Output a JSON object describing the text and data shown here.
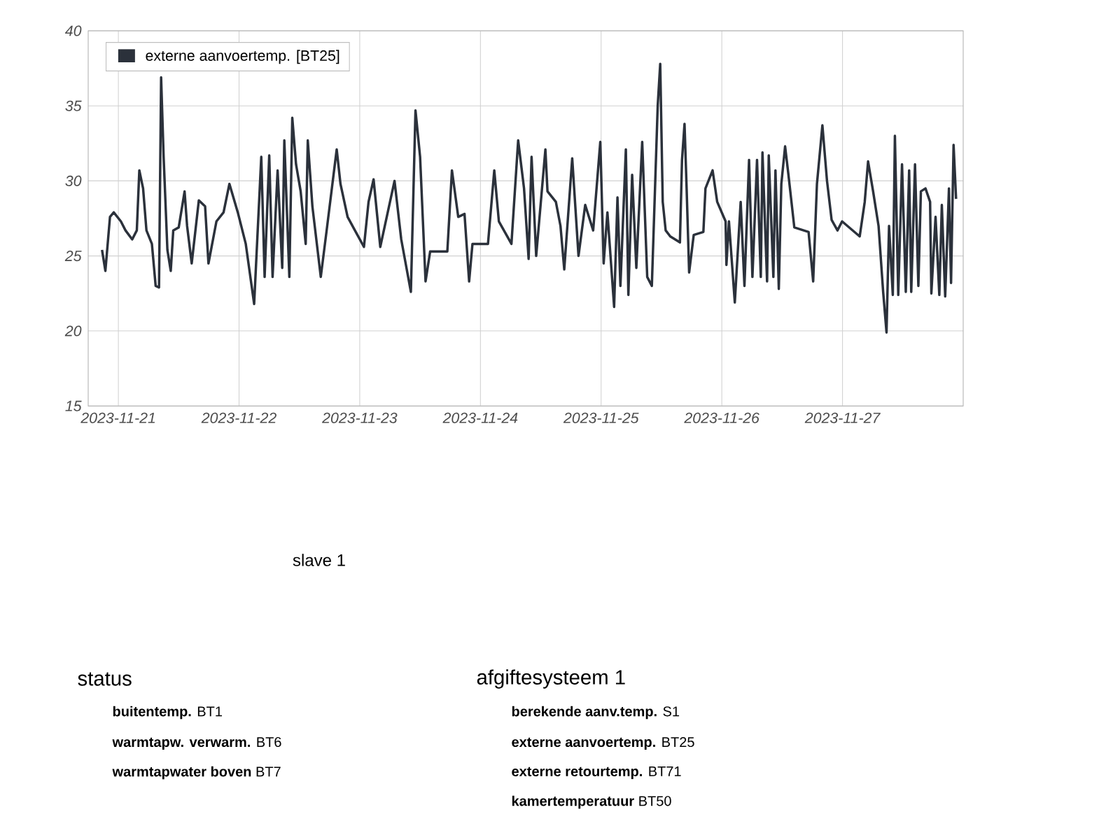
{
  "chart_data": {
    "type": "line",
    "x": [
      "2023-11-20T20:45",
      "2023-11-20T21:25",
      "2023-11-20T22:20",
      "2023-11-20T23:05",
      "2023-11-21T00:30",
      "2023-11-21T01:25",
      "2023-11-21T02:45",
      "2023-11-21T03:40",
      "2023-11-21T04:10",
      "2023-11-21T04:55",
      "2023-11-21T05:35",
      "2023-11-21T06:40",
      "2023-11-21T07:25",
      "2023-11-21T08:05",
      "2023-11-21T08:30",
      "2023-11-21T09:00",
      "2023-11-21T09:45",
      "2023-11-21T10:25",
      "2023-11-21T10:55",
      "2023-11-21T12:00",
      "2023-11-21T13:10",
      "2023-11-21T13:40",
      "2023-11-21T14:35",
      "2023-11-21T16:00",
      "2023-11-21T17:15",
      "2023-11-21T17:55",
      "2023-11-21T19:30",
      "2023-11-21T20:55",
      "2023-11-21T22:05",
      "2023-11-21T23:45",
      "2023-11-22T01:20",
      "2023-11-22T03:00",
      "2023-11-22T04:25",
      "2023-11-22T05:05",
      "2023-11-22T06:00",
      "2023-11-22T06:40",
      "2023-11-22T07:40",
      "2023-11-22T08:35",
      "2023-11-22T09:00",
      "2023-11-22T10:00",
      "2023-11-22T10:35",
      "2023-11-22T11:20",
      "2023-11-22T12:15",
      "2023-11-22T13:15",
      "2023-11-22T13:40",
      "2023-11-22T14:35",
      "2023-11-22T16:15",
      "2023-11-22T17:25",
      "2023-11-22T19:25",
      "2023-11-22T20:10",
      "2023-11-22T21:35",
      "2023-11-23T00:50",
      "2023-11-23T01:45",
      "2023-11-23T02:45",
      "2023-11-23T04:05",
      "2023-11-23T06:55",
      "2023-11-23T08:15",
      "2023-11-23T10:10",
      "2023-11-23T11:05",
      "2023-11-23T12:00",
      "2023-11-23T13:05",
      "2023-11-23T14:00",
      "2023-11-23T17:25",
      "2023-11-23T18:20",
      "2023-11-23T19:35",
      "2023-11-23T20:50",
      "2023-11-23T21:45",
      "2023-11-23T22:25",
      "2023-11-24T01:30",
      "2023-11-24T02:45",
      "2023-11-24T03:40",
      "2023-11-24T06:10",
      "2023-11-24T07:30",
      "2023-11-24T08:40",
      "2023-11-24T09:35",
      "2023-11-24T10:10",
      "2023-11-24T11:05",
      "2023-11-24T12:55",
      "2023-11-24T13:20",
      "2023-11-24T15:00",
      "2023-11-24T15:55",
      "2023-11-24T16:40",
      "2023-11-24T18:15",
      "2023-11-24T19:30",
      "2023-11-24T20:50",
      "2023-11-24T22:25",
      "2023-11-24T23:50",
      "2023-11-25T00:30",
      "2023-11-25T01:15",
      "2023-11-25T02:35",
      "2023-11-25T03:15",
      "2023-11-25T03:50",
      "2023-11-25T04:55",
      "2023-11-25T05:25",
      "2023-11-25T06:10",
      "2023-11-25T07:00",
      "2023-11-25T08:10",
      "2023-11-25T09:10",
      "2023-11-25T10:05",
      "2023-11-25T11:15",
      "2023-11-25T11:45",
      "2023-11-25T12:15",
      "2023-11-25T12:50",
      "2023-11-25T13:45",
      "2023-11-25T15:40",
      "2023-11-25T16:05",
      "2023-11-25T16:35",
      "2023-11-25T17:00",
      "2023-11-25T17:30",
      "2023-11-25T18:25",
      "2023-11-25T20:20",
      "2023-11-25T20:45",
      "2023-11-25T22:10",
      "2023-11-25T23:05",
      "2023-11-26T00:45",
      "2023-11-26T00:55",
      "2023-11-26T01:25",
      "2023-11-26T02:35",
      "2023-11-26T03:45",
      "2023-11-26T04:30",
      "2023-11-26T05:25",
      "2023-11-26T06:05",
      "2023-11-26T07:00",
      "2023-11-26T07:45",
      "2023-11-26T08:05",
      "2023-11-26T09:00",
      "2023-11-26T09:20",
      "2023-11-26T10:15",
      "2023-11-26T10:40",
      "2023-11-26T11:20",
      "2023-11-26T11:50",
      "2023-11-26T12:35",
      "2023-11-26T13:15",
      "2023-11-26T14:25",
      "2023-11-26T17:15",
      "2023-11-26T18:10",
      "2023-11-26T18:55",
      "2023-11-26T20:00",
      "2023-11-26T20:55",
      "2023-11-26T21:50",
      "2023-11-26T23:00",
      "2023-11-26T23:55",
      "2023-11-27T03:25",
      "2023-11-27T04:25",
      "2023-11-27T05:05",
      "2023-11-27T06:05",
      "2023-11-27T07:10",
      "2023-11-27T08:05",
      "2023-11-27T08:45",
      "2023-11-27T09:15",
      "2023-11-27T10:00",
      "2023-11-27T10:25",
      "2023-11-27T11:05",
      "2023-11-27T11:50",
      "2023-11-27T12:35",
      "2023-11-27T13:15",
      "2023-11-27T13:40",
      "2023-11-27T14:25",
      "2023-11-27T15:05",
      "2023-11-27T15:35",
      "2023-11-27T16:30",
      "2023-11-27T17:25",
      "2023-11-27T17:40",
      "2023-11-27T18:30",
      "2023-11-27T19:15",
      "2023-11-27T19:45",
      "2023-11-27T20:25",
      "2023-11-27T21:10",
      "2023-11-27T21:35",
      "2023-11-27T22:05",
      "2023-11-27T22:35"
    ],
    "series": [
      {
        "name": "externe aanvoertemp. [BT25]",
        "color": "#2b313b",
        "values": [
          25.4,
          24.0,
          27.6,
          27.9,
          27.3,
          26.7,
          26.1,
          26.7,
          30.7,
          29.5,
          26.7,
          25.8,
          23.0,
          22.9,
          36.9,
          31.6,
          25.4,
          24.0,
          26.7,
          26.9,
          29.3,
          27.0,
          24.5,
          28.7,
          28.3,
          24.5,
          27.3,
          27.9,
          29.8,
          27.9,
          25.8,
          21.8,
          31.6,
          23.6,
          31.7,
          23.6,
          30.7,
          24.2,
          32.7,
          23.6,
          34.2,
          31.1,
          29.3,
          25.8,
          32.7,
          28.3,
          23.6,
          26.7,
          32.1,
          29.8,
          27.6,
          25.6,
          28.6,
          30.1,
          25.6,
          30.0,
          26.1,
          22.6,
          34.7,
          31.6,
          23.3,
          25.3,
          25.3,
          30.7,
          27.6,
          27.8,
          23.3,
          25.8,
          25.8,
          30.7,
          27.3,
          25.8,
          32.7,
          29.5,
          24.8,
          31.6,
          25.0,
          32.1,
          29.3,
          28.6,
          27.0,
          24.1,
          31.5,
          25.0,
          28.4,
          26.7,
          32.6,
          24.5,
          27.9,
          21.6,
          28.9,
          23.0,
          32.1,
          22.4,
          30.4,
          24.2,
          32.6,
          23.6,
          23.0,
          35.0,
          37.8,
          28.6,
          26.7,
          26.3,
          25.9,
          31.4,
          33.8,
          29.5,
          23.9,
          26.4,
          26.6,
          29.5,
          30.7,
          28.6,
          27.3,
          24.4,
          27.3,
          21.9,
          28.6,
          23.0,
          31.4,
          23.6,
          31.4,
          23.6,
          31.9,
          23.3,
          31.7,
          23.6,
          30.7,
          22.8,
          29.8,
          32.3,
          30.4,
          26.9,
          26.6,
          23.3,
          29.8,
          33.7,
          30.0,
          27.4,
          26.7,
          27.3,
          26.3,
          28.6,
          31.3,
          29.3,
          27.0,
          22.6,
          19.9,
          27.0,
          22.4,
          33.0,
          22.4,
          31.1,
          22.6,
          30.7,
          22.6,
          31.1,
          23.0,
          29.3,
          29.5,
          28.6,
          22.5,
          27.6,
          22.4,
          28.4,
          22.3,
          29.5,
          23.2,
          32.4,
          28.8
        ]
      }
    ],
    "xlim": [
      "2023-11-20T18:00",
      "2023-11-28T00:00"
    ],
    "xticks": [
      "2023-11-21",
      "2023-11-22",
      "2023-11-23",
      "2023-11-24",
      "2023-11-25",
      "2023-11-26",
      "2023-11-27"
    ],
    "ylim": [
      15,
      40
    ],
    "yticks": [
      15,
      20,
      25,
      30,
      35,
      40
    ],
    "grid": true,
    "legend": "top left",
    "marker": "none",
    "line_style": "solid",
    "annotations": [
      "slave 1",
      "status",
      "**buitentemp.** BT1",
      "**warmtapw. verwarm.** BT6",
      "**warmtapwater boven** BT7",
      "afgiftesysteem 1",
      "**berekende aanv.temp.** S1",
      "**externe aanvoertemp.** BT25",
      "**externe retourtemp.** BT71",
      "**kamertemperatuur** BT50"
    ]
  }
}
